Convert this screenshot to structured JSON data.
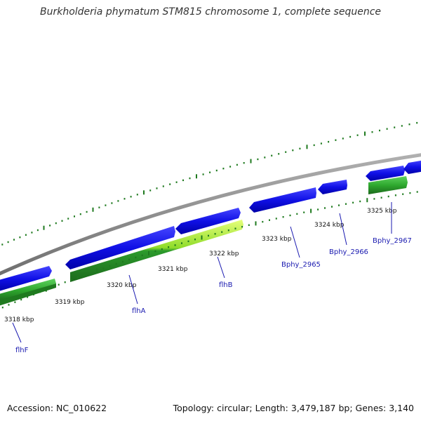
{
  "title": "Burkholderia phymatum STM815 chromosome 1, complete sequence",
  "footer": {
    "accession": "Accession: NC_010622",
    "topology": "Topology: circular; Length: 3,479,187 bp; Genes: 3,140"
  },
  "colors": {
    "cds": "#1010e6",
    "gc_light": "#b8f23c",
    "gc_dark": "#1f7a1f",
    "gc_mid": "#3cc43c",
    "backbone": "#8a8a8a",
    "ticks": "#1f7a1f",
    "gene_label": "#1a1ab0"
  },
  "ticks": [
    {
      "label": "3318 kbp"
    },
    {
      "label": "3319 kbp"
    },
    {
      "label": "3320 kbp"
    },
    {
      "label": "3321 kbp"
    },
    {
      "label": "3322 kbp"
    },
    {
      "label": "3323 kbp"
    },
    {
      "label": "3324 kbp"
    },
    {
      "label": "3325 kbp"
    }
  ],
  "genes": [
    {
      "label": "flhF"
    },
    {
      "label": "flhA"
    },
    {
      "label": "flhB"
    },
    {
      "label": "Bphy_2965"
    },
    {
      "label": "Bphy_2966"
    },
    {
      "label": "Bphy_2967"
    }
  ]
}
